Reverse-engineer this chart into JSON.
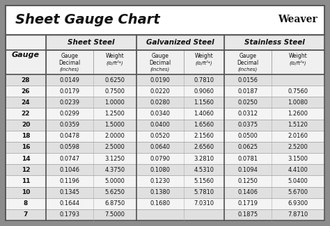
{
  "title": "Sheet Gauge Chart",
  "bg_outer": "#8c8c8c",
  "bg_white": "#ffffff",
  "gauges": [
    "28",
    "26",
    "24",
    "22",
    "20",
    "18",
    "16",
    "14",
    "12",
    "11",
    "10",
    "8",
    "7"
  ],
  "sheet_steel_decimal": [
    "0.0149",
    "0.0179",
    "0.0239",
    "0.0299",
    "0.0359",
    "0.0478",
    "0.0598",
    "0.0747",
    "0.1046",
    "0.1196",
    "0.1345",
    "0.1644",
    "0.1793"
  ],
  "sheet_steel_weight": [
    "0.6250",
    "0.7500",
    "1.0000",
    "1.2500",
    "1.5000",
    "2.0000",
    "2.5000",
    "3.1250",
    "4.3750",
    "5.0000",
    "5.6250",
    "6.8750",
    "7.5000"
  ],
  "galv_decimal": [
    "0.0190",
    "0.0220",
    "0.0280",
    "0.0340",
    "0.0400",
    "0.0520",
    "0.0640",
    "0.0790",
    "0.1080",
    "0.1230",
    "0.1380",
    "0.1680",
    ""
  ],
  "galv_weight": [
    "0.7810",
    "0.9060",
    "1.1560",
    "1.4060",
    "1.6560",
    "2.1560",
    "2.6560",
    "3.2810",
    "4.5310",
    "5.1560",
    "5.7810",
    "7.0310",
    ""
  ],
  "stainless_decimal": [
    "0.0156",
    "0.0187",
    "0.0250",
    "0.0312",
    "0.0375",
    "0.0500",
    "0.0625",
    "0.0781",
    "0.1094",
    "0.1250",
    "0.1406",
    "0.1719",
    "0.1875"
  ],
  "stainless_weight": [
    "",
    "0.7560",
    "1.0080",
    "1.2600",
    "1.5120",
    "2.0160",
    "2.5200",
    "3.1500",
    "4.4100",
    "5.0400",
    "5.6700",
    "6.9300",
    "7.8710"
  ],
  "col_headers": [
    "Sheet Steel",
    "Galvanized Steel",
    "Stainless Steel"
  ],
  "sub_header_line1": "Gauge",
  "sub_header_line2": "Decimal",
  "sub_header_line3": "(inches)",
  "sub_header_wt1": "Weight",
  "sub_header_wt2": "(lb/ft²*)"
}
